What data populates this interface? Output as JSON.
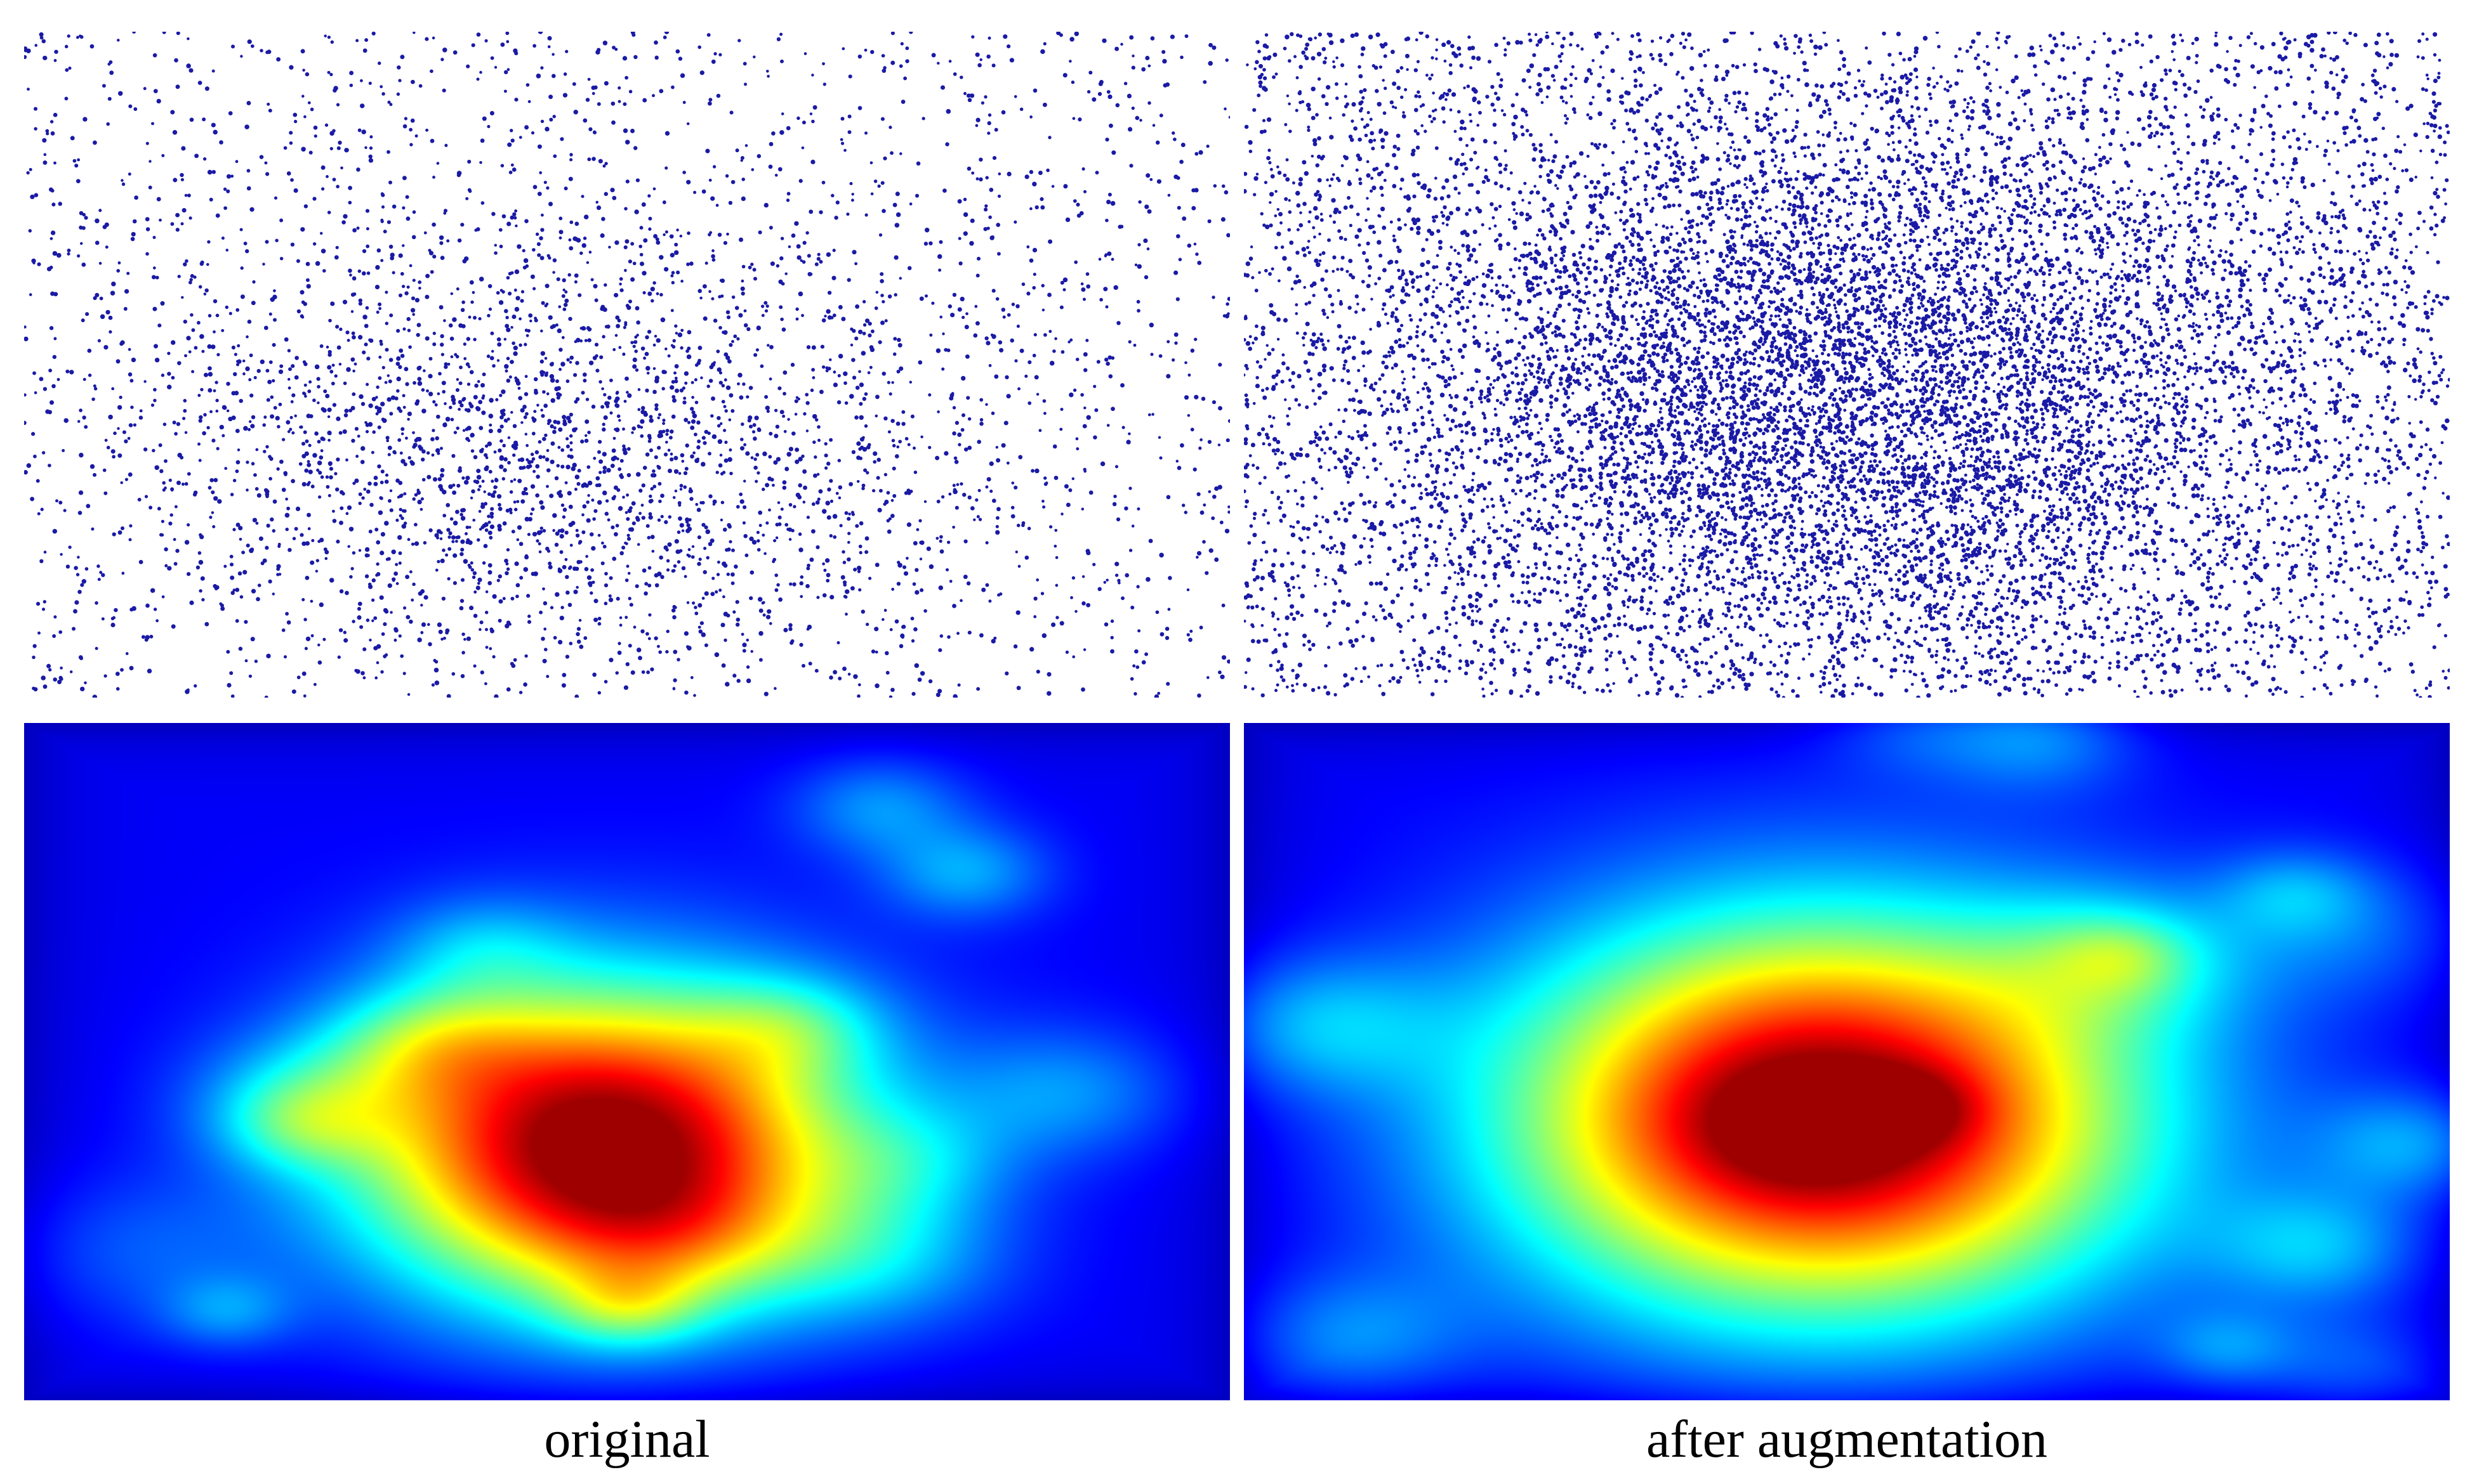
{
  "figure": {
    "panels": [
      {
        "caption": "original"
      },
      {
        "caption": "after augmentation"
      }
    ]
  },
  "colors": {
    "point": "#1a1aa6",
    "background": "#ffffff",
    "heatmap_colormap": "jet"
  },
  "chart_data": [
    {
      "type": "scatter",
      "panel": "original",
      "x_range": [
        0,
        1
      ],
      "y_range": [
        0,
        1
      ],
      "n_points": 4000,
      "distribution": "uniform background with a density cluster centered near (0.42, 0.62)",
      "cluster": {
        "center": [
          0.42,
          0.62
        ],
        "spread": [
          0.17,
          0.17
        ],
        "weight": 0.45
      }
    },
    {
      "type": "scatter",
      "panel": "after augmentation",
      "x_range": [
        0,
        1
      ],
      "y_range": [
        0,
        1
      ],
      "n_points": 13000,
      "distribution": "uniform background with a denser cluster centered near (0.50, 0.55)",
      "cluster": {
        "center": [
          0.5,
          0.55
        ],
        "spread": [
          0.2,
          0.22
        ],
        "weight": 0.55
      }
    },
    {
      "type": "heatmap",
      "panel": "original",
      "colormap": "jet",
      "peak": [
        0.5,
        0.6
      ],
      "hotspot_center": [
        0.48,
        0.62
      ],
      "hotspot_spread": [
        0.14,
        0.16
      ]
    },
    {
      "type": "heatmap",
      "panel": "after augmentation",
      "colormap": "jet",
      "peak": [
        0.48,
        0.6
      ],
      "hotspot_center": [
        0.48,
        0.58
      ],
      "hotspot_spread": [
        0.18,
        0.2
      ]
    }
  ]
}
